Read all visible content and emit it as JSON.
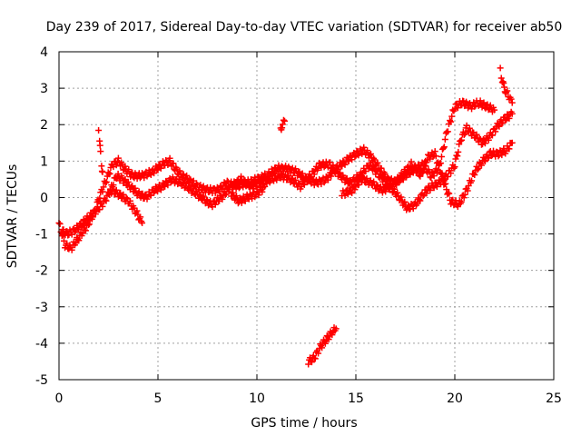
{
  "chart_data": {
    "type": "scatter",
    "title": "Day 239 of 2017, Sidereal Day-to-day VTEC variation (SDTVAR) for receiver ab50",
    "xlabel": "GPS time / hours",
    "ylabel": "SDTVAR / TECUs",
    "xlim": [
      0,
      25
    ],
    "ylim": [
      -5,
      4
    ],
    "x_ticks": [
      0,
      5,
      10,
      15,
      20,
      25
    ],
    "y_ticks": [
      -5,
      -4,
      -3,
      -2,
      -1,
      0,
      1,
      2,
      3,
      4
    ],
    "x_tick_labels": [
      "0",
      "5",
      "10",
      "15",
      "20",
      "25"
    ],
    "y_tick_labels": [
      "-5",
      "-4",
      "-3",
      "-2",
      "-1",
      "0",
      "1",
      "2",
      "3",
      "4"
    ],
    "grid": true,
    "marker": "+",
    "color": "#ff0000",
    "series": [
      {
        "name": "SDTVAR",
        "segments": [
          [
            [
              0.0,
              -0.7
            ],
            [
              0.3,
              -1.3
            ],
            [
              0.6,
              -1.4
            ],
            [
              1.0,
              -1.1
            ],
            [
              1.4,
              -0.8
            ],
            [
              1.8,
              -0.4
            ],
            [
              2.1,
              0.1
            ],
            [
              2.4,
              0.5
            ],
            [
              2.7,
              0.9
            ],
            [
              3.0,
              1.0
            ],
            [
              3.3,
              0.8
            ],
            [
              3.7,
              0.6
            ],
            [
              4.2,
              0.6
            ],
            [
              4.7,
              0.7
            ],
            [
              5.2,
              0.9
            ],
            [
              5.6,
              1.0
            ],
            [
              6.0,
              0.7
            ],
            [
              6.5,
              0.5
            ],
            [
              7.0,
              0.3
            ],
            [
              7.5,
              0.2
            ],
            [
              8.0,
              0.2
            ],
            [
              8.5,
              0.4
            ],
            [
              9.0,
              0.3
            ],
            [
              9.5,
              0.4
            ],
            [
              10.0,
              0.5
            ],
            [
              10.5,
              0.6
            ],
            [
              11.0,
              0.8
            ],
            [
              11.5,
              0.8
            ],
            [
              12.0,
              0.7
            ],
            [
              12.5,
              0.5
            ],
            [
              13.0,
              0.4
            ],
            [
              13.5,
              0.5
            ],
            [
              14.0,
              0.8
            ],
            [
              14.5,
              1.0
            ],
            [
              15.0,
              1.2
            ],
            [
              15.4,
              1.3
            ],
            [
              15.8,
              1.1
            ],
            [
              16.2,
              0.8
            ],
            [
              16.6,
              0.5
            ],
            [
              17.0,
              0.4
            ],
            [
              17.5,
              0.6
            ],
            [
              18.0,
              0.8
            ],
            [
              18.4,
              0.9
            ],
            [
              18.8,
              0.6
            ],
            [
              19.2,
              0.8
            ],
            [
              19.6,
              1.8
            ],
            [
              20.0,
              2.5
            ],
            [
              20.4,
              2.6
            ],
            [
              20.8,
              2.5
            ],
            [
              21.2,
              2.6
            ],
            [
              21.6,
              2.5
            ],
            [
              22.0,
              2.4
            ]
          ],
          [
            [
              0.1,
              -0.9
            ],
            [
              0.4,
              -1.0
            ],
            [
              0.8,
              -0.9
            ],
            [
              1.2,
              -0.7
            ],
            [
              1.6,
              -0.5
            ],
            [
              2.0,
              -0.3
            ],
            [
              2.3,
              -0.1
            ],
            [
              2.6,
              0.2
            ],
            [
              2.9,
              0.6
            ],
            [
              3.2,
              0.5
            ],
            [
              3.6,
              0.3
            ],
            [
              4.0,
              0.1
            ],
            [
              4.4,
              0.0
            ],
            [
              4.8,
              0.2
            ],
            [
              5.2,
              0.3
            ],
            [
              5.7,
              0.5
            ],
            [
              6.2,
              0.4
            ],
            [
              6.7,
              0.2
            ],
            [
              7.2,
              0.0
            ],
            [
              7.7,
              -0.2
            ],
            [
              8.2,
              0.0
            ],
            [
              8.7,
              0.3
            ],
            [
              9.2,
              0.5
            ],
            [
              9.7,
              0.3
            ],
            [
              10.2,
              0.4
            ],
            [
              10.7,
              0.5
            ],
            [
              11.2,
              0.6
            ],
            [
              11.7,
              0.5
            ],
            [
              12.2,
              0.3
            ],
            [
              12.7,
              0.6
            ],
            [
              13.2,
              0.9
            ],
            [
              13.7,
              0.9
            ],
            [
              14.2,
              0.6
            ],
            [
              14.7,
              0.4
            ],
            [
              15.2,
              0.6
            ],
            [
              15.7,
              0.9
            ],
            [
              16.2,
              0.6
            ],
            [
              16.7,
              0.3
            ],
            [
              17.2,
              0.0
            ],
            [
              17.6,
              -0.3
            ],
            [
              18.0,
              -0.2
            ],
            [
              18.4,
              0.1
            ],
            [
              18.8,
              0.3
            ],
            [
              19.2,
              0.4
            ],
            [
              19.6,
              0.6
            ],
            [
              20.0,
              0.9
            ],
            [
              20.3,
              1.6
            ],
            [
              20.6,
              1.9
            ],
            [
              21.0,
              1.7
            ],
            [
              21.4,
              1.5
            ],
            [
              21.8,
              1.7
            ],
            [
              22.2,
              2.0
            ],
            [
              22.6,
              2.2
            ],
            [
              22.9,
              2.3
            ]
          ],
          [
            [
              2.6,
              0.2
            ],
            [
              3.0,
              0.1
            ],
            [
              3.5,
              -0.1
            ],
            [
              3.9,
              -0.4
            ],
            [
              4.2,
              -0.7
            ]
          ],
          [
            [
              8.7,
              0.1
            ],
            [
              9.1,
              -0.1
            ],
            [
              9.5,
              0.0
            ],
            [
              10.0,
              0.1
            ],
            [
              10.4,
              0.3
            ]
          ],
          [
            [
              14.3,
              0.1
            ],
            [
              14.8,
              0.2
            ],
            [
              15.3,
              0.5
            ],
            [
              15.8,
              0.4
            ],
            [
              16.3,
              0.2
            ],
            [
              16.8,
              0.3
            ],
            [
              17.3,
              0.6
            ],
            [
              17.8,
              0.9
            ],
            [
              18.3,
              0.6
            ],
            [
              18.6,
              1.1
            ],
            [
              19.0,
              1.2
            ],
            [
              19.4,
              0.5
            ],
            [
              19.8,
              -0.1
            ],
            [
              20.2,
              -0.2
            ],
            [
              20.6,
              0.2
            ],
            [
              21.0,
              0.7
            ],
            [
              21.4,
              1.0
            ],
            [
              21.8,
              1.2
            ],
            [
              22.2,
              1.2
            ],
            [
              22.6,
              1.3
            ],
            [
              22.9,
              1.5
            ]
          ],
          [
            [
              2.0,
              1.9
            ],
            [
              2.05,
              1.5
            ],
            [
              2.1,
              1.2
            ],
            [
              2.15,
              0.9
            ],
            [
              2.2,
              0.7
            ]
          ],
          [
            [
              11.2,
              1.9
            ],
            [
              11.3,
              2.0
            ],
            [
              11.4,
              2.1
            ]
          ],
          [
            [
              22.3,
              3.5
            ],
            [
              22.4,
              3.2
            ],
            [
              22.5,
              3.0
            ],
            [
              22.6,
              2.9
            ],
            [
              22.8,
              2.7
            ],
            [
              22.9,
              2.6
            ]
          ],
          [
            [
              12.6,
              -4.5
            ],
            [
              12.9,
              -4.4
            ],
            [
              13.2,
              -4.1
            ],
            [
              13.5,
              -3.9
            ],
            [
              13.8,
              -3.7
            ],
            [
              14.0,
              -3.6
            ]
          ]
        ]
      }
    ]
  }
}
